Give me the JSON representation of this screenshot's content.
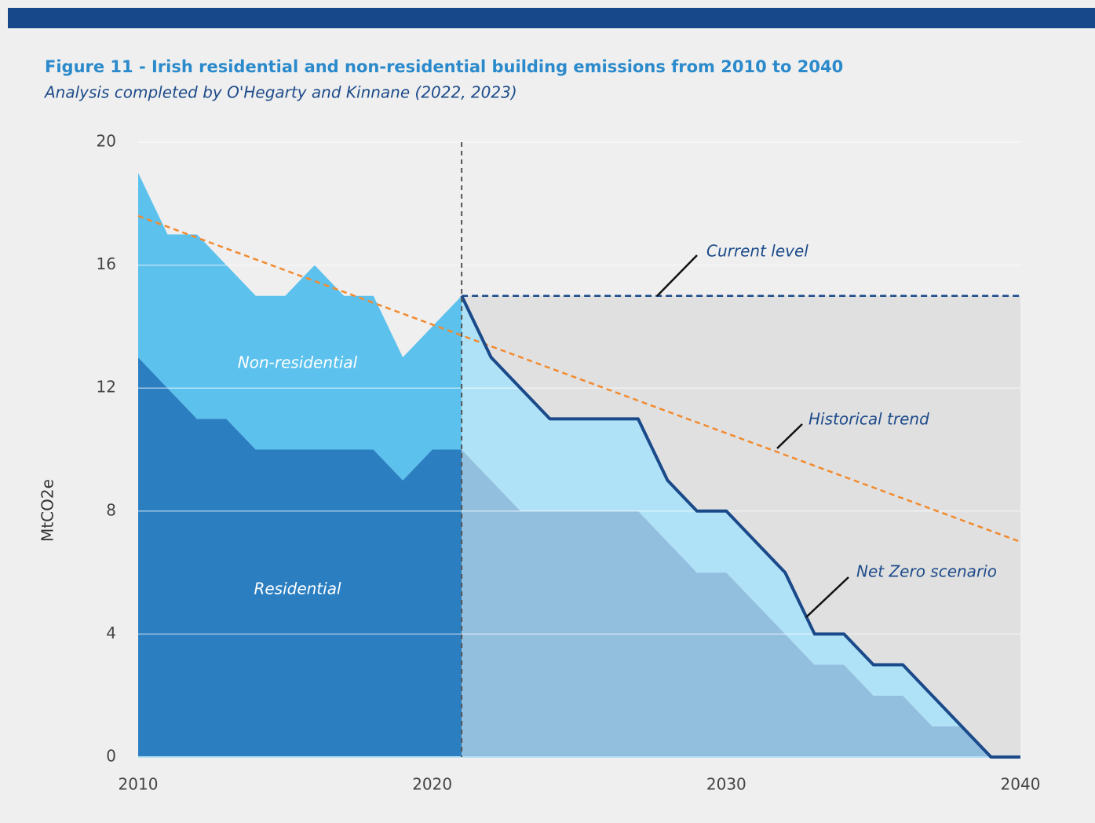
{
  "chart_data": {
    "type": "area",
    "title": "Figure 11 - Irish residential and non-residential building emissions from 2010 to 2040",
    "subtitle": "Analysis completed by O'Hegarty and Kinnane (2022, 2023)",
    "y_label": "MtCO2e",
    "xlim": [
      2010,
      2040
    ],
    "xticks": [
      2010,
      2020,
      2030,
      2040
    ],
    "ylim": [
      0,
      20
    ],
    "yticks": [
      0,
      4,
      8,
      12,
      16,
      20
    ],
    "grid": true,
    "divider_x": 2021,
    "series": [
      {
        "name": "Current level",
        "kind": "level",
        "color": "#1a4a8a",
        "fill": "#e0e0e0",
        "x": [
          2021,
          2040
        ],
        "values": [
          15,
          15
        ]
      },
      {
        "name": "Residential",
        "kind": "area",
        "stack": "historical",
        "color": "#2b7fc1",
        "x": [
          2010,
          2011,
          2012,
          2013,
          2014,
          2015,
          2016,
          2017,
          2018,
          2019,
          2020,
          2021
        ],
        "values": [
          13,
          12,
          11,
          11,
          10,
          10,
          10,
          10,
          10,
          9,
          10,
          10
        ]
      },
      {
        "name": "Non-residential",
        "kind": "area",
        "stack": "historical",
        "color": "#5cc1ed",
        "x": [
          2010,
          2011,
          2012,
          2013,
          2014,
          2015,
          2016,
          2017,
          2018,
          2019,
          2020,
          2021
        ],
        "values": [
          6,
          5,
          6,
          5,
          5,
          5,
          6,
          5,
          5,
          4,
          4,
          5
        ]
      },
      {
        "kind": "area",
        "stack": "projected",
        "color": "#93bfdf",
        "x": [
          2021,
          2022,
          2023,
          2024,
          2025,
          2026,
          2027,
          2028,
          2029,
          2030,
          2031,
          2032,
          2033,
          2034,
          2035,
          2036,
          2037,
          2038,
          2039,
          2040
        ],
        "values": [
          10,
          9,
          8,
          8,
          8,
          8,
          8,
          7,
          6,
          6,
          5,
          4,
          3,
          3,
          2,
          2,
          1,
          1,
          0,
          0
        ]
      },
      {
        "kind": "area",
        "stack": "projected",
        "color": "#b0e2f7",
        "x": [
          2021,
          2022,
          2023,
          2024,
          2025,
          2026,
          2027,
          2028,
          2029,
          2030,
          2031,
          2032,
          2033,
          2034,
          2035,
          2036,
          2037,
          2038,
          2039,
          2040
        ],
        "values": [
          5,
          4,
          4,
          3,
          3,
          3,
          3,
          2,
          2,
          2,
          2,
          2,
          1,
          1,
          1,
          1,
          1,
          0,
          0,
          0
        ]
      },
      {
        "name": "Historical trend",
        "kind": "trend",
        "color": "#f28a2e",
        "x": [
          2010,
          2040
        ],
        "values": [
          17.6,
          7.0
        ]
      },
      {
        "name": "Net Zero scenario",
        "kind": "line",
        "color": "#1a4a8a",
        "x": [
          2021,
          2022,
          2023,
          2024,
          2025,
          2026,
          2027,
          2028,
          2029,
          2030,
          2031,
          2032,
          2033,
          2034,
          2035,
          2036,
          2037,
          2038,
          2039,
          2040
        ],
        "values": [
          15,
          13,
          12,
          11,
          11,
          11,
          11,
          9,
          8,
          8,
          7,
          6,
          4,
          4,
          3,
          3,
          2,
          1,
          0,
          0
        ]
      }
    ]
  }
}
